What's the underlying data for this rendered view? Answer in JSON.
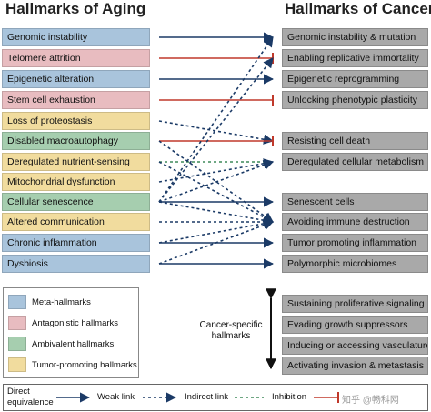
{
  "titles": {
    "aging": "Hallmarks of Aging",
    "cancer": "Hallmarks of Cancer"
  },
  "colors": {
    "meta": "#a9c4dc",
    "antagonistic": "#e8bcc0",
    "ambivalent": "#a6ceaf",
    "tumor": "#f1dc9e",
    "cancer_box": "#a9a9a9",
    "arrow": "#1b3a66",
    "inhibition": "#c0392b",
    "indirect": "#3f8a5a"
  },
  "aging": [
    {
      "label": "Genomic instability",
      "cat": "meta"
    },
    {
      "label": "Telomere attrition",
      "cat": "antagonistic"
    },
    {
      "label": "Epigenetic alteration",
      "cat": "meta"
    },
    {
      "label": "Stem cell exhaustion",
      "cat": "antagonistic"
    },
    {
      "label": "Loss of proteostasis",
      "cat": "tumor"
    },
    {
      "label": "Disabled macroautophagy",
      "cat": "ambivalent"
    },
    {
      "label": "Deregulated nutrient-sensing",
      "cat": "tumor"
    },
    {
      "label": "Mitochondrial dysfunction",
      "cat": "tumor"
    },
    {
      "label": "Cellular senescence",
      "cat": "ambivalent"
    },
    {
      "label": "Altered communication",
      "cat": "tumor"
    },
    {
      "label": "Chronic inflammation",
      "cat": "meta"
    },
    {
      "label": "Dysbiosis",
      "cat": "meta"
    }
  ],
  "cancer": [
    "Genomic instability & mutation",
    "Enabling replicative immortality",
    "Epigenetic reprogramming",
    "Unlocking phenotypic plasticity",
    "Resisting cell death",
    "Deregulated cellular metabolism",
    "Senescent cells",
    "Avoiding immune destruction",
    "Tumor promoting inflammation",
    "Polymorphic microbiomes"
  ],
  "cancer_specific": {
    "label": "Cancer-specific hallmarks",
    "items": [
      "Sustaining proliferative signaling",
      "Evading growth suppressors",
      "Inducing or accessing vasculature",
      "Activating invasion & metastasis"
    ]
  },
  "legend": [
    {
      "label": "Meta-hallmarks",
      "cat": "meta"
    },
    {
      "label": "Antagonistic hallmarks",
      "cat": "antagonistic"
    },
    {
      "label": "Ambivalent hallmarks",
      "cat": "ambivalent"
    },
    {
      "label": "Tumor-promoting hallmarks",
      "cat": "tumor"
    }
  ],
  "link_legend": {
    "direct_line1": "Direct",
    "direct_line2": "equivalence",
    "weak": "Weak link",
    "indirect": "Indirect link",
    "inhibition": "Inhibition",
    "watermark": "知乎 @畅科网"
  },
  "links": [
    {
      "from": 0,
      "to": 0,
      "type": "direct"
    },
    {
      "from": 1,
      "to": 1,
      "type": "inhibition"
    },
    {
      "from": 2,
      "to": 2,
      "type": "direct"
    },
    {
      "from": 3,
      "to": 3,
      "type": "inhibition"
    },
    {
      "from": 4,
      "to": 4,
      "type": "weak"
    },
    {
      "from": 5,
      "to": 4,
      "type": "inhibition"
    },
    {
      "from": 6,
      "to": 5,
      "type": "indirect"
    },
    {
      "from": 7,
      "to": 5,
      "type": "weak"
    },
    {
      "from": 8,
      "to": 0,
      "type": "weak"
    },
    {
      "from": 8,
      "to": 1,
      "type": "weak"
    },
    {
      "from": 8,
      "to": 5,
      "type": "weak"
    },
    {
      "from": 8,
      "to": 6,
      "type": "direct"
    },
    {
      "from": 8,
      "to": 7,
      "type": "weak"
    },
    {
      "from": 5,
      "to": 7,
      "type": "weak"
    },
    {
      "from": 6,
      "to": 7,
      "type": "weak"
    },
    {
      "from": 9,
      "to": 7,
      "type": "weak"
    },
    {
      "from": 10,
      "to": 8,
      "type": "direct"
    },
    {
      "from": 10,
      "to": 7,
      "type": "weak"
    },
    {
      "from": 11,
      "to": 9,
      "type": "direct"
    },
    {
      "from": 11,
      "to": 7,
      "type": "weak"
    }
  ]
}
